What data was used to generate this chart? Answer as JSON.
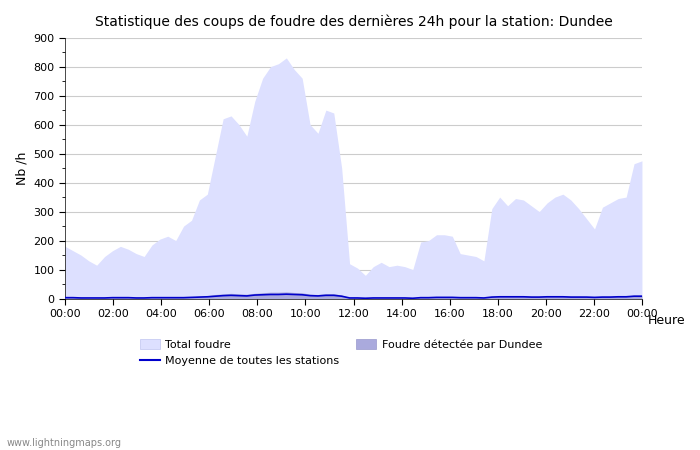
{
  "title": "Statistique des coups de foudre des dernières 24h pour la station: Dundee",
  "ylabel": "Nb /h",
  "xlabel": "Heure",
  "ylim": [
    0,
    900
  ],
  "yticks": [
    0,
    100,
    200,
    300,
    400,
    500,
    600,
    700,
    800,
    900
  ],
  "xtick_labels": [
    "00:00",
    "02:00",
    "04:00",
    "06:00",
    "08:00",
    "10:00",
    "12:00",
    "14:00",
    "16:00",
    "18:00",
    "20:00",
    "22:00",
    "00:00"
  ],
  "background_color": "#ffffff",
  "plot_bg_color": "#ffffff",
  "grid_color": "#cccccc",
  "total_foudre_fill": "#dde0ff",
  "total_foudre_edge": "#c8ccf8",
  "dundee_fill": "#aaaadd",
  "dundee_edge": "#aaaadd",
  "moyenne_color": "#0000cc",
  "watermark": "www.lightningmaps.org",
  "total_foudre_y": [
    180,
    165,
    150,
    130,
    115,
    145,
    165,
    180,
    170,
    155,
    145,
    185,
    205,
    215,
    200,
    250,
    270,
    340,
    360,
    490,
    620,
    630,
    600,
    560,
    680,
    760,
    800,
    810,
    830,
    790,
    760,
    600,
    570,
    650,
    640,
    450,
    120,
    105,
    80,
    110,
    125,
    110,
    115,
    110,
    100,
    195,
    200,
    220,
    220,
    215,
    155,
    150,
    145,
    130,
    310,
    350,
    320,
    345,
    340,
    320,
    300,
    330,
    350,
    360,
    340,
    310,
    275,
    240,
    315,
    330,
    345,
    350,
    465,
    475
  ],
  "dundee_y": [
    5,
    4,
    3,
    2,
    2,
    3,
    3,
    4,
    3,
    3,
    3,
    4,
    5,
    5,
    4,
    5,
    6,
    8,
    10,
    14,
    16,
    18,
    16,
    15,
    18,
    20,
    22,
    22,
    23,
    21,
    20,
    15,
    14,
    17,
    17,
    12,
    3,
    3,
    2,
    3,
    3,
    3,
    3,
    3,
    2,
    5,
    5,
    6,
    6,
    6,
    4,
    4,
    4,
    3,
    8,
    9,
    9,
    9,
    9,
    8,
    8,
    9,
    9,
    9,
    8,
    8,
    7,
    6,
    8,
    8,
    9,
    9,
    12,
    12
  ],
  "moyenne_y": [
    3,
    3,
    2,
    2,
    2,
    2,
    3,
    3,
    3,
    2,
    2,
    3,
    3,
    3,
    3,
    3,
    4,
    5,
    6,
    8,
    10,
    11,
    10,
    9,
    12,
    13,
    14,
    14,
    15,
    14,
    13,
    10,
    9,
    11,
    11,
    8,
    2,
    2,
    1,
    2,
    2,
    2,
    2,
    2,
    1,
    3,
    3,
    4,
    4,
    4,
    3,
    3,
    3,
    2,
    5,
    6,
    6,
    6,
    6,
    5,
    5,
    6,
    6,
    6,
    5,
    5,
    5,
    4,
    5,
    5,
    6,
    6,
    8,
    8
  ]
}
